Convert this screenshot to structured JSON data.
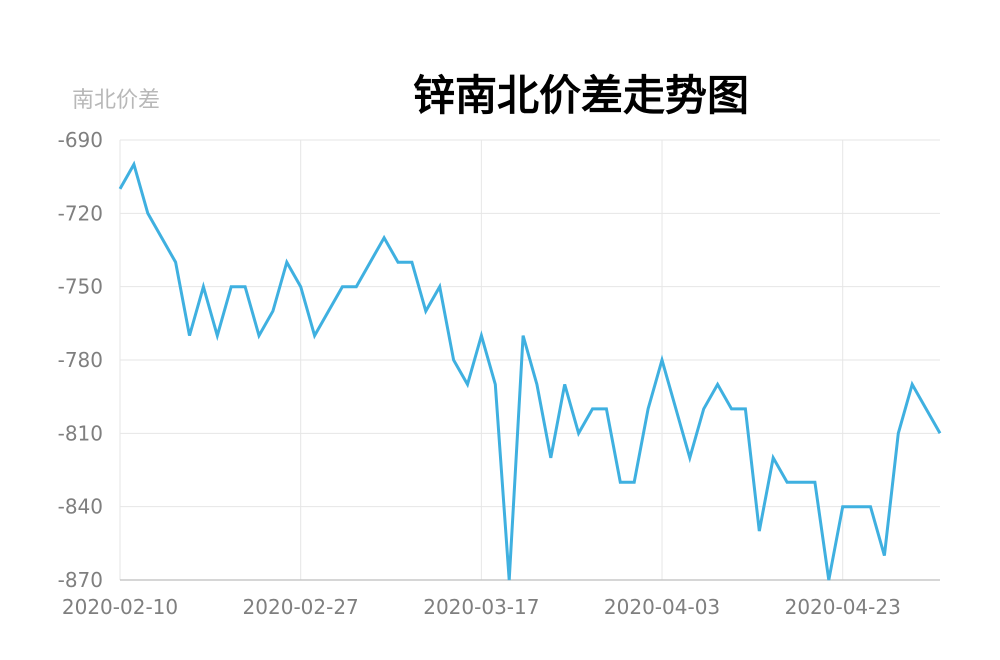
{
  "chart_data": {
    "type": "line",
    "title": "锌南北价差走势图",
    "ylabel": "南北价差",
    "xlabel": "",
    "ylim": [
      -870,
      -690
    ],
    "yticks": [
      -690,
      -720,
      -750,
      -780,
      -810,
      -840,
      -870
    ],
    "xticks": [
      "2020-02-10",
      "2020-02-27",
      "2020-03-17",
      "2020-04-03",
      "2020-04-23"
    ],
    "grid": true,
    "line_color": "#3fb0e0",
    "series": [
      {
        "values": [
          -710,
          -700,
          -720,
          -730,
          -740,
          -770,
          -750,
          -770,
          -750,
          -750,
          -770,
          -760,
          -740,
          -750,
          -770,
          -760,
          -750,
          -750,
          -740,
          -730,
          -740,
          -740,
          -760,
          -750,
          -780,
          -790,
          -770,
          -790,
          -870,
          -770,
          -790,
          -820,
          -790,
          -810,
          -800,
          -800,
          -830,
          -830,
          -800,
          -780,
          -800,
          -820,
          -800,
          -790,
          -800,
          -800,
          -850,
          -820,
          -830,
          -830,
          -830,
          -870,
          -840,
          -840,
          -840,
          -860,
          -810,
          -790,
          -800,
          -810
        ]
      }
    ]
  }
}
